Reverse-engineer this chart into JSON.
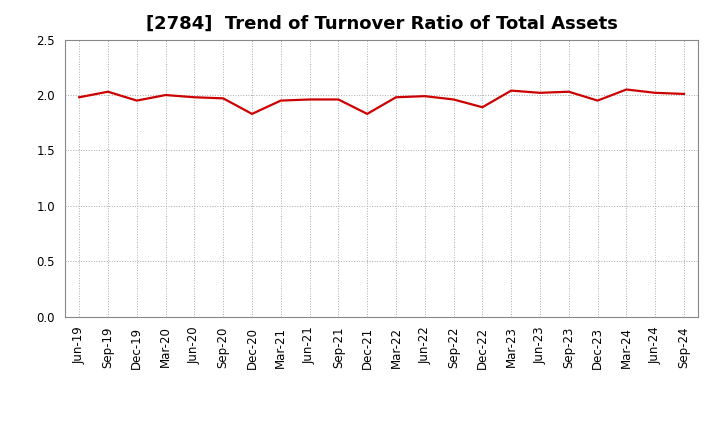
{
  "title": "[2784]  Trend of Turnover Ratio of Total Assets",
  "labels": [
    "Jun-19",
    "Sep-19",
    "Dec-19",
    "Mar-20",
    "Jun-20",
    "Sep-20",
    "Dec-20",
    "Mar-21",
    "Jun-21",
    "Sep-21",
    "Dec-21",
    "Mar-22",
    "Jun-22",
    "Sep-22",
    "Dec-22",
    "Mar-23",
    "Jun-23",
    "Sep-23",
    "Dec-23",
    "Mar-24",
    "Jun-24",
    "Sep-24"
  ],
  "values": [
    1.98,
    2.03,
    1.95,
    2.0,
    1.98,
    1.97,
    1.83,
    1.95,
    1.96,
    1.96,
    1.83,
    1.98,
    1.99,
    1.96,
    1.89,
    2.04,
    2.02,
    2.03,
    1.95,
    2.05,
    2.02,
    2.01
  ],
  "line_color": "#cc0000",
  "line_width": 1.6,
  "ylim": [
    0.0,
    2.5
  ],
  "yticks": [
    0.0,
    0.5,
    1.0,
    1.5,
    2.0,
    2.5
  ],
  "grid_color": "#aaaaaa",
  "bg_color": "#ffffff",
  "title_fontsize": 13,
  "tick_fontsize": 8.5
}
